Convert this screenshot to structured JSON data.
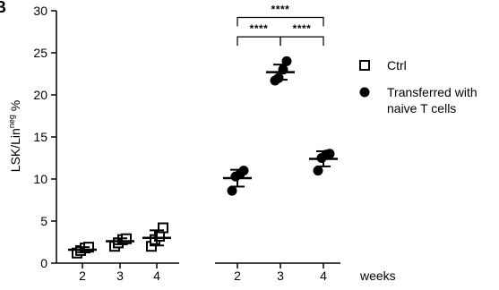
{
  "panel_label": "B",
  "chart_data": {
    "type": "scatter",
    "ylabel": "LSK/Lin",
    "ylabel_sup": "neg",
    "ylabel_suffix": " %",
    "xlabel": "weeks",
    "ylim": [
      0,
      30
    ],
    "yticks": [
      0,
      5,
      10,
      15,
      20,
      25,
      30
    ],
    "grid": false,
    "legend_position": "right",
    "series": [
      {
        "name": "Ctrl",
        "marker": "open-square",
        "color": "#000000",
        "groups": [
          {
            "x": "2",
            "points": [
              1.2,
              1.5,
              1.8,
              1.9
            ],
            "mean": 1.6,
            "sd": 0.3
          },
          {
            "x": "3",
            "points": [
              2.0,
              2.4,
              2.8,
              2.9
            ],
            "mean": 2.6,
            "sd": 0.35
          },
          {
            "x": "4",
            "points": [
              2.0,
              2.8,
              3.2,
              4.2
            ],
            "mean": 3.0,
            "sd": 0.9
          }
        ]
      },
      {
        "name": "Transferred with naive T cells",
        "name_lines": [
          "Transferred with",
          "naive T cells"
        ],
        "marker": "filled-circle",
        "color": "#000000",
        "groups": [
          {
            "x": "2",
            "points": [
              8.6,
              10.3,
              10.6,
              11.0
            ],
            "mean": 10.1,
            "sd": 1.0
          },
          {
            "x": "3",
            "points": [
              21.7,
              22.0,
              23.0,
              24.0
            ],
            "mean": 22.7,
            "sd": 0.9
          },
          {
            "x": "4",
            "points": [
              11.0,
              12.5,
              12.9,
              13.0
            ],
            "mean": 12.4,
            "sd": 0.9
          }
        ]
      }
    ],
    "significance": [
      {
        "from_group": 0,
        "to_group": 1,
        "series": 1,
        "label": "****",
        "level": 26.9
      },
      {
        "from_group": 1,
        "to_group": 2,
        "series": 1,
        "label": "****",
        "level": 26.9
      },
      {
        "from_group": 0,
        "to_group": 2,
        "series": 1,
        "label": "****",
        "level": 29.2
      }
    ]
  }
}
